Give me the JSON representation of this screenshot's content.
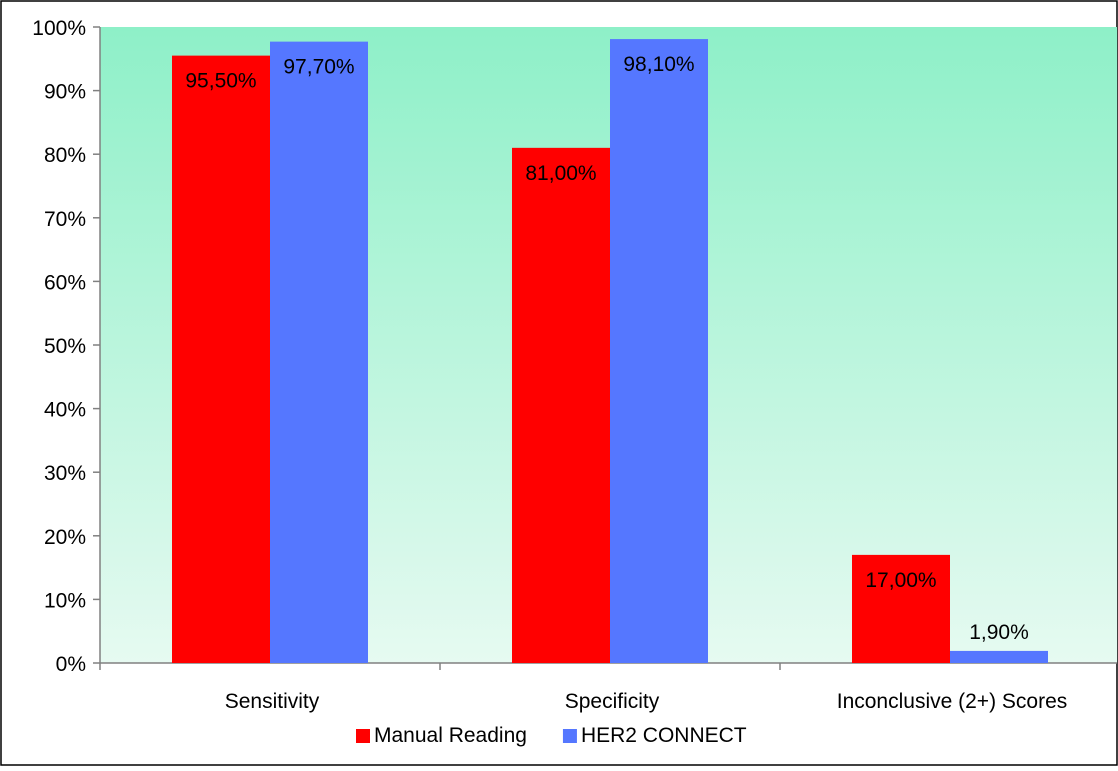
{
  "chart_data": {
    "type": "bar",
    "title": "",
    "xlabel": "",
    "ylabel": "",
    "ylim": [
      0,
      100
    ],
    "yticks": [
      0,
      10,
      20,
      30,
      40,
      50,
      60,
      70,
      80,
      90,
      100
    ],
    "ytick_labels": [
      "0%",
      "10%",
      "20%",
      "30%",
      "40%",
      "50%",
      "60%",
      "70%",
      "80%",
      "90%",
      "100%"
    ],
    "categories": [
      "Sensitivity",
      "Specificity",
      "Inconclusive (2+) Scores"
    ],
    "series": [
      {
        "name": "Manual Reading",
        "color": "#FF0000",
        "values": [
          95.5,
          81.0,
          17.0
        ],
        "labels": [
          "95,50%",
          "81,00%",
          "17,00%"
        ]
      },
      {
        "name": "HER2 CONNECT",
        "color": "#5577FF",
        "values": [
          97.7,
          98.1,
          1.9
        ],
        "labels": [
          "97,70%",
          "98,10%",
          "1,90%"
        ]
      }
    ],
    "legend_position": "bottom",
    "grid": false,
    "background_gradient": [
      "#8EF0C8",
      "#E6FAF1"
    ]
  }
}
